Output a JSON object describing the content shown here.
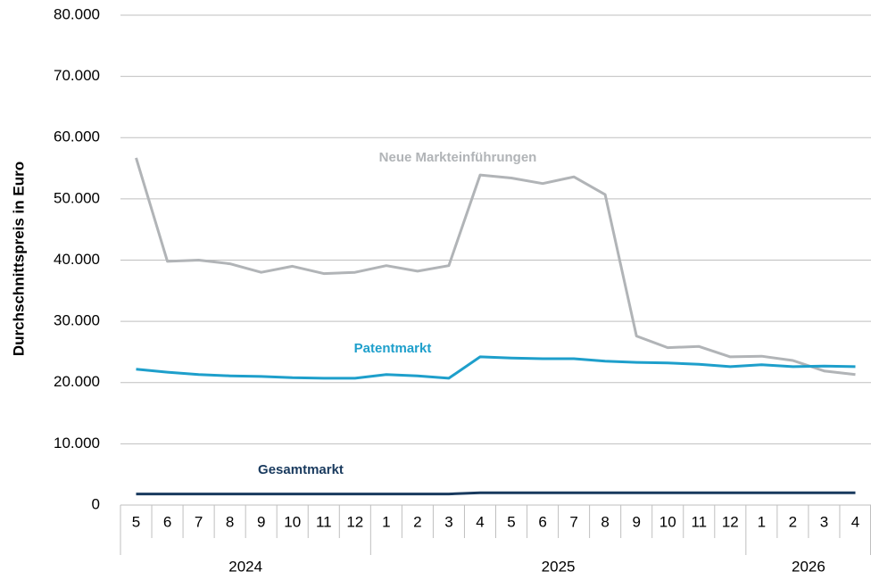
{
  "chart_data": {
    "type": "line",
    "y_label": "Durchschnittspreis in Euro",
    "categories": [
      "5",
      "6",
      "7",
      "8",
      "9",
      "10",
      "11",
      "12",
      "1",
      "2",
      "3",
      "4",
      "5",
      "6",
      "7",
      "8",
      "9",
      "10",
      "11",
      "12",
      "1",
      "2",
      "3",
      "4"
    ],
    "category_groups": [
      {
        "label": "2024",
        "size": 8
      },
      {
        "label": "2025",
        "size": 12
      },
      {
        "label": "2026",
        "size": 4
      }
    ],
    "series": [
      {
        "name": "Neue Markteinführungen",
        "color": "#b1b4b7",
        "values": [
          56700,
          39800,
          40000,
          39400,
          38000,
          39000,
          37800,
          38000,
          39100,
          38200,
          39100,
          53900,
          53400,
          52500,
          53600,
          50700,
          27600,
          25700,
          25900,
          24200,
          24300,
          23600,
          21900,
          21300
        ]
      },
      {
        "name": "Patentmarkt",
        "color": "#1e9fcb",
        "values": [
          22200,
          21700,
          21300,
          21100,
          21000,
          20800,
          20700,
          20700,
          21300,
          21100,
          20700,
          24200,
          24000,
          23900,
          23900,
          23500,
          23300,
          23200,
          23000,
          22600,
          22900,
          22600,
          22700,
          22600
        ]
      },
      {
        "name": "Gesamtmarkt",
        "color": "#193a5e",
        "values": [
          1800,
          1800,
          1800,
          1800,
          1800,
          1800,
          1800,
          1800,
          1800,
          1800,
          1800,
          2000,
          2000,
          2000,
          2000,
          2000,
          2000,
          2000,
          2000,
          2000,
          2000,
          2000,
          2000,
          2000
        ]
      }
    ],
    "ylim": [
      0,
      80000
    ],
    "yticks": [
      0,
      {
        "value": 10000,
        "label": "10.000"
      },
      {
        "value": 20000,
        "label": "20.000"
      },
      {
        "value": 30000,
        "label": "30.000"
      },
      {
        "value": 40000,
        "label": "40.000"
      },
      {
        "value": 50000,
        "label": "50.000"
      },
      {
        "value": 60000,
        "label": "60.000"
      },
      {
        "value": 70000,
        "label": "70.000"
      },
      {
        "value": 80000,
        "label": "80.000"
      }
    ],
    "grid": true
  }
}
